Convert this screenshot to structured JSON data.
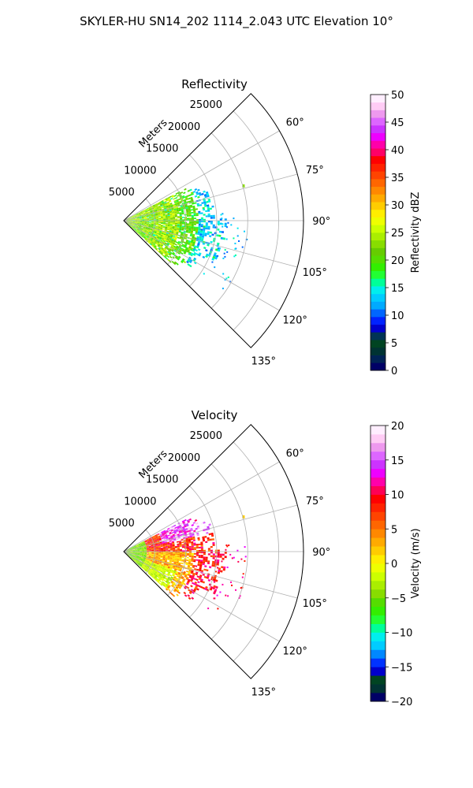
{
  "title": "SKYLER-HU  SN14_202  1114_2.043 UTC Elevation 10°",
  "chart_data": [
    {
      "type": "heatmap",
      "title": "Reflectivity",
      "radial_label": "Meters",
      "radial_ticks": [
        "5000",
        "10000",
        "15000",
        "20000",
        "25000"
      ],
      "radial_values": [
        5000,
        10000,
        15000,
        20000,
        25000
      ],
      "range_max": 29000,
      "angle_ticks": [
        "60°",
        "75°",
        "90°",
        "105°",
        "120°",
        "135°"
      ],
      "angle_values": [
        60,
        75,
        90,
        105,
        120,
        135
      ],
      "azimuth_range": [
        45,
        135
      ],
      "grid": true,
      "colorbar": {
        "label": "Reflectivity dBZ",
        "min": 0,
        "max": 50,
        "ticks": [
          "0",
          "5",
          "10",
          "15",
          "20",
          "25",
          "30",
          "35",
          "40",
          "45",
          "50"
        ],
        "tick_values": [
          0,
          5,
          10,
          15,
          20,
          25,
          30,
          35,
          40,
          45,
          50
        ],
        "colors": [
          "#000066",
          "#002255",
          "#003333",
          "#004422",
          "#003355",
          "#0000cc",
          "#0022ff",
          "#0066ff",
          "#00aaff",
          "#00ccff",
          "#00eeee",
          "#00ff99",
          "#22ff33",
          "#33ee00",
          "#55dd00",
          "#66cc00",
          "#88dd00",
          "#aaee00",
          "#ccff00",
          "#eeff00",
          "#ffee00",
          "#ffcc00",
          "#ffaa00",
          "#ff8800",
          "#ff6600",
          "#ff4400",
          "#ff2200",
          "#ff0000",
          "#ff0066",
          "#ff00aa",
          "#ee00ff",
          "#cc33ff",
          "#dd66ff",
          "#ee99ee",
          "#ffccf5",
          "#ffeeff"
        ]
      },
      "echo_pattern": "Band of echo 0–18 km near radar, mostly 15–25 dBZ (green/yellow) within ~8 km, 10–15 dBZ (cyan/teal) beyond; isolated speck near 20 km at 73°"
    },
    {
      "type": "heatmap",
      "title": "Velocity",
      "radial_label": "Meters",
      "radial_ticks": [
        "5000",
        "10000",
        "15000",
        "20000",
        "25000"
      ],
      "radial_values": [
        5000,
        10000,
        15000,
        20000,
        25000
      ],
      "range_max": 29000,
      "angle_ticks": [
        "60°",
        "75°",
        "90°",
        "105°",
        "120°",
        "135°"
      ],
      "angle_values": [
        60,
        75,
        90,
        105,
        120,
        135
      ],
      "azimuth_range": [
        45,
        135
      ],
      "grid": true,
      "colorbar": {
        "label": "Velocity (m/s)",
        "min": -20,
        "max": 20,
        "ticks": [
          "−20",
          "−15",
          "−10",
          "−5",
          "0",
          "5",
          "10",
          "15",
          "20"
        ],
        "tick_values": [
          -20,
          -15,
          -10,
          -5,
          0,
          5,
          10,
          15,
          20
        ],
        "colors": [
          "#000066",
          "#003333",
          "#004422",
          "#0000cc",
          "#0033ff",
          "#0088ff",
          "#00ccff",
          "#00eeee",
          "#00ff99",
          "#22ff33",
          "#33ee00",
          "#55dd00",
          "#88dd00",
          "#aaee00",
          "#ccff00",
          "#eeff00",
          "#ffee00",
          "#ffcc00",
          "#ffaa00",
          "#ff8800",
          "#ff6600",
          "#ff4400",
          "#ff2200",
          "#ff0000",
          "#ff0055",
          "#ff00aa",
          "#ee00ff",
          "#cc33ff",
          "#dd66ff",
          "#ee99ee",
          "#ffccf5",
          "#ffeeff"
        ]
      },
      "echo_pattern": "Near radar −5 to −10 m/s (green); north-east sector 60–75° at 10–20 m/s (magenta/red); central and southern sector 0–10 m/s (yellow/orange/red); outer speckles red"
    }
  ]
}
